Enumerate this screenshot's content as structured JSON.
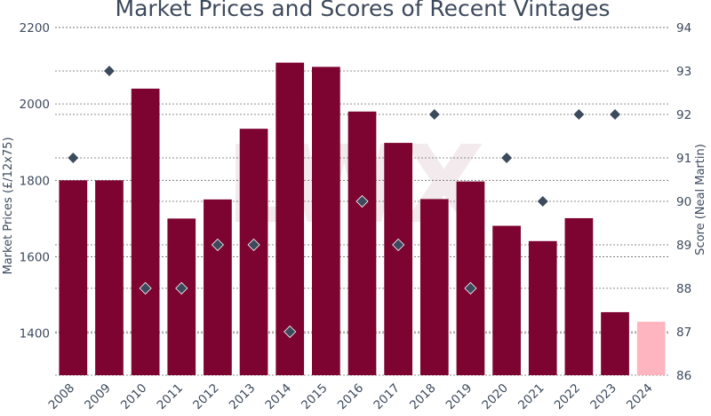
{
  "chart_data": {
    "type": "bar",
    "title": "Market Prices and Scores of Recent Vintages",
    "ylabel": "Market Prices (£/12x75)",
    "y2label": "Score (Neal Martin)",
    "watermark": "LWX",
    "categories": [
      "2008",
      "2009",
      "2010",
      "2011",
      "2012",
      "2013",
      "2014",
      "2015",
      "2016",
      "2017",
      "2018",
      "2019",
      "2020",
      "2021",
      "2022",
      "2023",
      "2024"
    ],
    "ylim": [
      1290,
      2200
    ],
    "yticks": [
      1400,
      1600,
      1800,
      2000,
      2200
    ],
    "y2lim": [
      86,
      94
    ],
    "y2ticks": [
      86,
      87,
      88,
      89,
      90,
      91,
      92,
      93,
      94
    ],
    "grid": true,
    "series": [
      {
        "kind": "bar",
        "axis": "left",
        "values": [
          1800,
          1800,
          2040,
          1700,
          1750,
          1935,
          2108,
          2097,
          1980,
          1898,
          1751,
          1797,
          1681,
          1641,
          1701,
          1455,
          1430
        ],
        "colors": [
          "#7d0330",
          "#7d0330",
          "#7d0330",
          "#7d0330",
          "#7d0330",
          "#7d0330",
          "#7d0330",
          "#7d0330",
          "#7d0330",
          "#7d0330",
          "#7d0330",
          "#7d0330",
          "#7d0330",
          "#7d0330",
          "#7d0330",
          "#7d0330",
          "#ffb5bf"
        ]
      },
      {
        "kind": "scatter",
        "marker": "diamond",
        "axis": "right",
        "values": [
          91,
          93,
          88,
          88,
          89,
          89,
          87,
          null,
          90,
          89,
          92,
          88,
          91,
          90,
          92,
          92,
          null
        ],
        "color": "#3d4a5c"
      }
    ]
  }
}
